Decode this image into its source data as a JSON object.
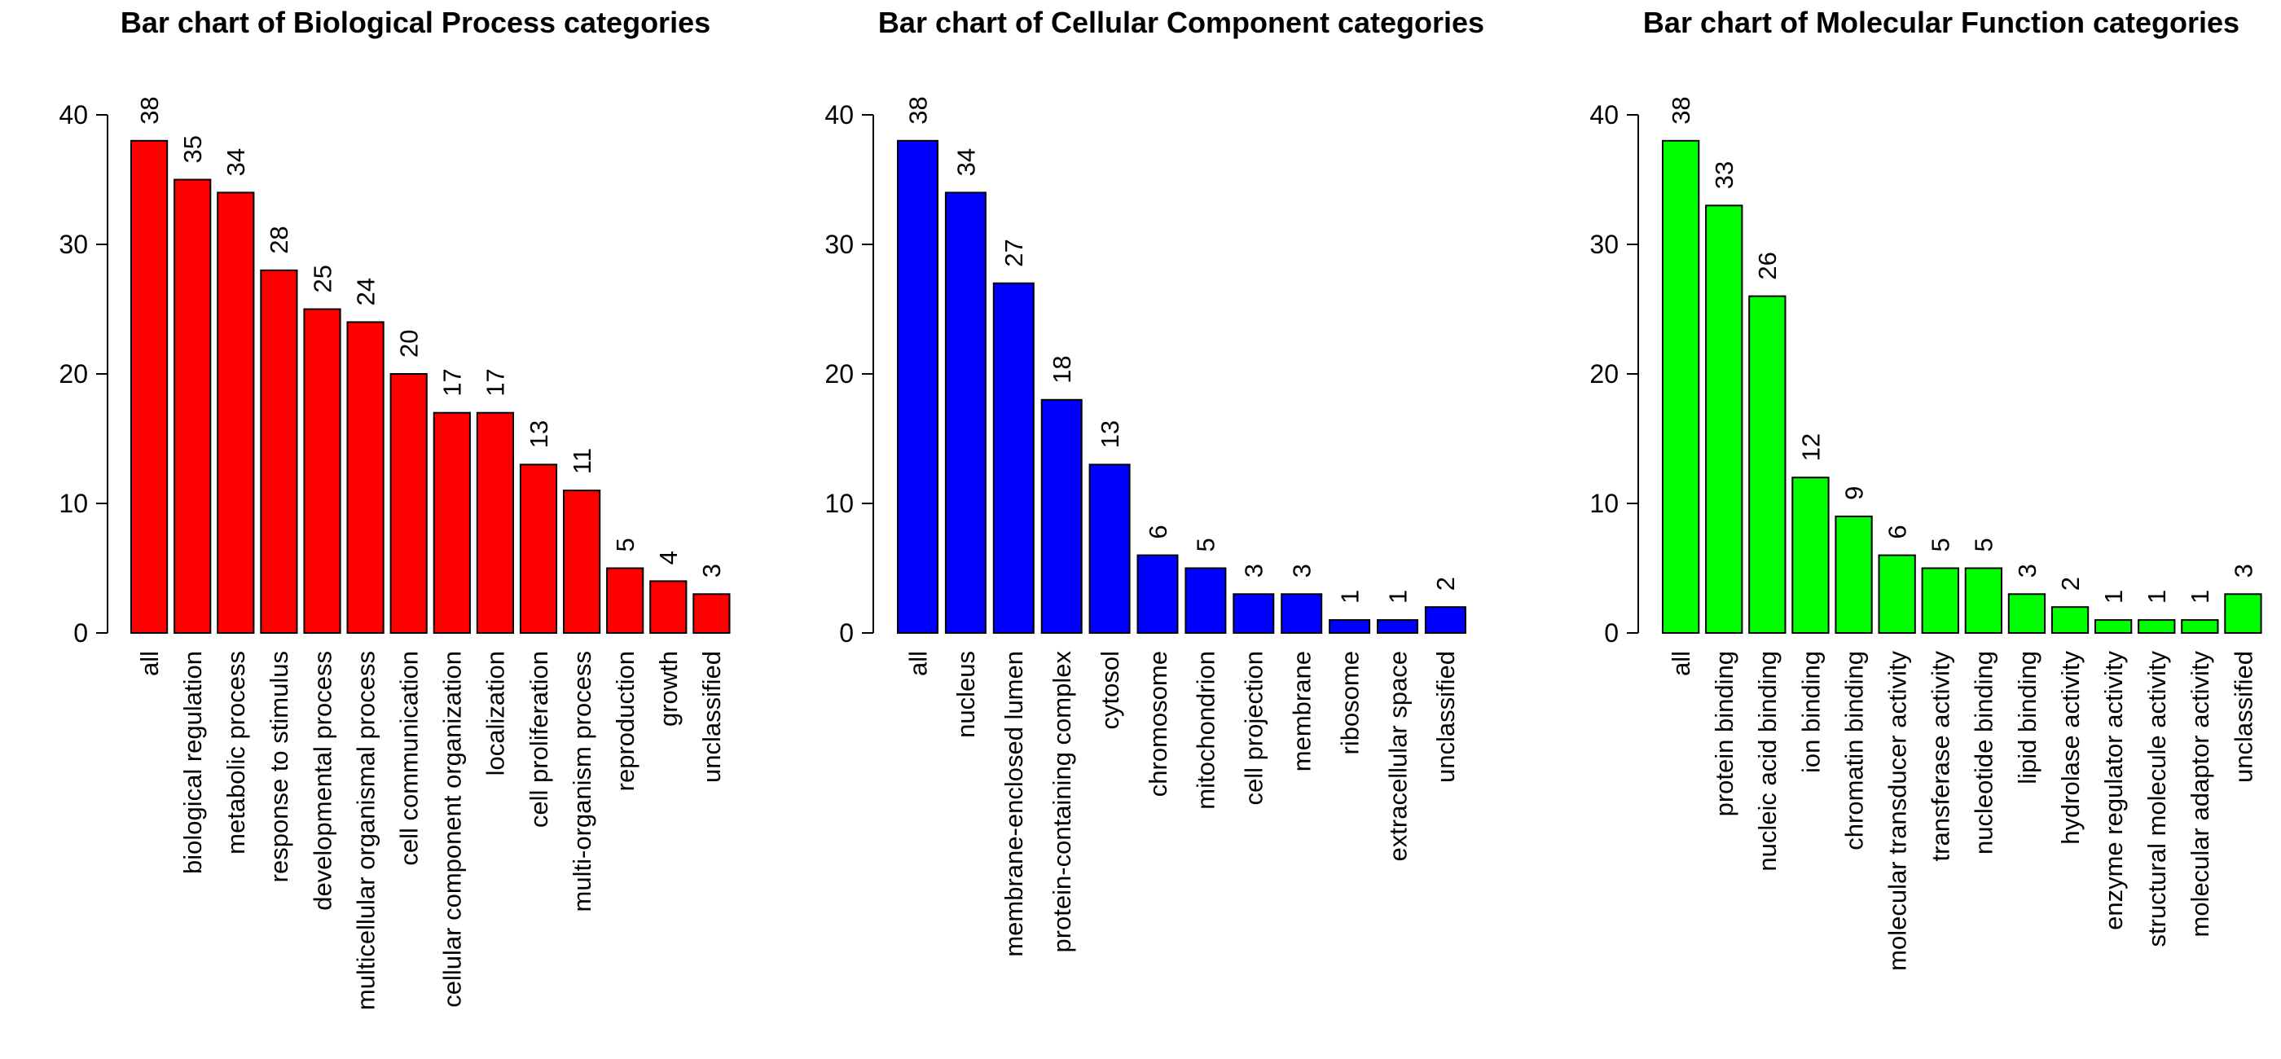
{
  "chart_data": [
    {
      "type": "bar",
      "title": "Bar chart of Biological Process categories",
      "color": "#ff0000",
      "ylim": [
        0,
        40
      ],
      "yticks": [
        0,
        10,
        20,
        30,
        40
      ],
      "categories": [
        "all",
        "biological regulation",
        "metabolic process",
        "response to stimulus",
        "developmental process",
        "multicellular organismal process",
        "cell communication",
        "cellular component organization",
        "localization",
        "cell proliferation",
        "multi-organism process",
        "reproduction",
        "growth",
        "unclassified"
      ],
      "values": [
        38,
        35,
        34,
        28,
        25,
        24,
        20,
        17,
        17,
        13,
        11,
        5,
        4,
        3
      ],
      "value_labels": [
        "38",
        "35",
        "34",
        "28",
        "25",
        "24",
        "20",
        "17",
        "17",
        "13",
        "11",
        "5",
        "4",
        "3"
      ],
      "grid": false,
      "legend": "none"
    },
    {
      "type": "bar",
      "title": "Bar chart of Cellular Component categories",
      "color": "#0000ff",
      "ylim": [
        0,
        40
      ],
      "yticks": [
        0,
        10,
        20,
        30,
        40
      ],
      "categories": [
        "all",
        "nucleus",
        "membrane-enclosed lumen",
        "protein-containing complex",
        "cytosol",
        "chromosome",
        "mitochondrion",
        "cell projection",
        "membrane",
        "ribosome",
        "extracellular space",
        "unclassified"
      ],
      "values": [
        38,
        34,
        27,
        18,
        13,
        6,
        5,
        3,
        3,
        1,
        1,
        2
      ],
      "value_labels": [
        "38",
        "34",
        "27",
        "18",
        "13",
        "6",
        "5",
        "3",
        "3",
        "1",
        "1",
        "2"
      ],
      "grid": false,
      "legend": "none"
    },
    {
      "type": "bar",
      "title": "Bar chart of Molecular Function categories",
      "color": "#00ff00",
      "ylim": [
        0,
        40
      ],
      "yticks": [
        0,
        10,
        20,
        30,
        40
      ],
      "categories": [
        "all",
        "protein binding",
        "nucleic acid binding",
        "ion binding",
        "chromatin binding",
        "molecular transducer activity",
        "transferase activity",
        "nucleotide binding",
        "lipid binding",
        "hydrolase activity",
        "enzyme regulator activity",
        "structural molecule activity",
        "molecular adaptor activity",
        "unclassified"
      ],
      "values": [
        38,
        33,
        26,
        12,
        9,
        6,
        5,
        5,
        3,
        2,
        1,
        1,
        1,
        3
      ],
      "value_labels": [
        "38",
        "33",
        "26",
        "12",
        "9",
        "6",
        "5",
        "5",
        "3",
        "2",
        "1",
        "1",
        "1",
        "3"
      ],
      "grid": false,
      "legend": "none"
    }
  ]
}
